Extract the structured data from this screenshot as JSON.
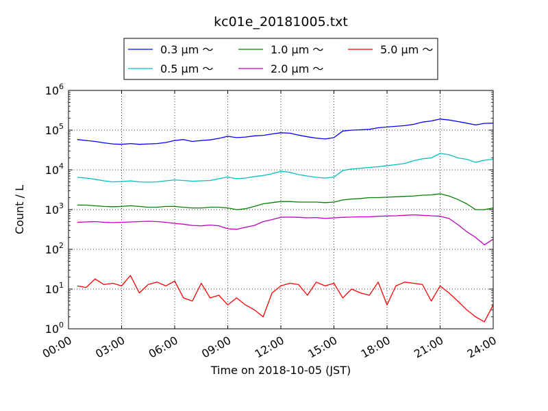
{
  "chart_data": {
    "type": "line",
    "title": "kc01e_20181005.txt",
    "xlabel": "Time on 2018-10-05 (JST)",
    "ylabel": "Count / L",
    "y_scale": "log",
    "ylim": [
      1,
      1000000
    ],
    "xlim": [
      "00:00",
      "24:00"
    ],
    "grid": true,
    "legend_position": "top-center",
    "x_ticks": [
      "00:00",
      "03:00",
      "06:00",
      "09:00",
      "12:00",
      "15:00",
      "18:00",
      "21:00",
      "24:00"
    ],
    "y_ticks": [
      {
        "base": "10",
        "exp": "0",
        "value": 1
      },
      {
        "base": "10",
        "exp": "1",
        "value": 10
      },
      {
        "base": "10",
        "exp": "2",
        "value": 100
      },
      {
        "base": "10",
        "exp": "3",
        "value": 1000
      },
      {
        "base": "10",
        "exp": "4",
        "value": 10000
      },
      {
        "base": "10",
        "exp": "5",
        "value": 100000
      },
      {
        "base": "10",
        "exp": "6",
        "value": 1000000
      }
    ],
    "x_hours": [
      0.5,
      1,
      1.5,
      2,
      2.5,
      3,
      3.5,
      4,
      4.5,
      5,
      5.5,
      6,
      6.5,
      7,
      7.5,
      8,
      8.5,
      9,
      9.5,
      10,
      10.5,
      11,
      11.5,
      12,
      12.5,
      13,
      13.5,
      14,
      14.5,
      15,
      15.5,
      16,
      16.5,
      17,
      17.5,
      18,
      18.5,
      19,
      19.5,
      20,
      20.5,
      21,
      21.5,
      22,
      22.5,
      23,
      23.5,
      24
    ],
    "series": [
      {
        "name": "0.3 μm ～",
        "color": "#0000ff",
        "values": [
          58000,
          55000,
          52000,
          48000,
          45000,
          44000,
          46000,
          44000,
          45000,
          46000,
          49000,
          55000,
          58000,
          52000,
          55000,
          57000,
          62000,
          70000,
          65000,
          67000,
          72000,
          74000,
          80000,
          86000,
          84000,
          75000,
          68000,
          63000,
          60000,
          65000,
          95000,
          100000,
          102000,
          105000,
          115000,
          120000,
          125000,
          130000,
          140000,
          160000,
          170000,
          190000,
          180000,
          165000,
          150000,
          135000,
          148000,
          150000
        ]
      },
      {
        "name": "0.5 μm ～",
        "color": "#00bfbf",
        "values": [
          6500,
          6200,
          5800,
          5300,
          5000,
          5100,
          5300,
          5000,
          4900,
          5000,
          5300,
          5600,
          5400,
          5200,
          5300,
          5400,
          6000,
          6600,
          6000,
          6200,
          6800,
          7200,
          8000,
          9200,
          8700,
          7600,
          7000,
          6500,
          6200,
          6600,
          9700,
          10500,
          11000,
          11500,
          12000,
          12800,
          13500,
          14500,
          17000,
          19000,
          20000,
          26000,
          24000,
          20000,
          18500,
          15500,
          17500,
          18500
        ]
      },
      {
        "name": "1.0 μm ～",
        "color": "#008000",
        "values": [
          1300,
          1300,
          1250,
          1200,
          1180,
          1200,
          1250,
          1200,
          1150,
          1150,
          1200,
          1200,
          1150,
          1100,
          1100,
          1150,
          1150,
          1100,
          1000,
          1050,
          1200,
          1400,
          1500,
          1600,
          1600,
          1550,
          1550,
          1550,
          1500,
          1550,
          1750,
          1850,
          1900,
          2000,
          2000,
          2050,
          2100,
          2150,
          2200,
          2300,
          2350,
          2500,
          2200,
          1800,
          1400,
          1000,
          1000,
          1100
        ]
      },
      {
        "name": "2.0 μm ～",
        "color": "#bf00bf",
        "values": [
          480,
          490,
          500,
          480,
          470,
          480,
          490,
          500,
          510,
          500,
          480,
          450,
          430,
          400,
          390,
          410,
          390,
          330,
          320,
          360,
          400,
          500,
          560,
          640,
          650,
          640,
          620,
          630,
          600,
          620,
          640,
          650,
          660,
          660,
          680,
          690,
          700,
          720,
          740,
          720,
          700,
          680,
          600,
          420,
          280,
          200,
          130,
          180
        ]
      },
      {
        "name": "5.0 μm ～",
        "color": "#ff0000",
        "values": [
          12,
          11,
          18,
          13,
          14,
          12,
          22,
          8,
          13,
          15,
          12,
          16,
          6,
          5,
          14,
          6,
          7,
          4,
          6,
          4,
          3,
          2,
          8,
          12,
          14,
          13,
          7,
          15,
          12,
          14,
          6,
          10,
          8,
          7,
          15,
          4,
          12,
          15,
          14,
          13,
          5,
          12,
          8,
          5,
          3,
          2,
          1.5,
          4
        ]
      }
    ]
  }
}
